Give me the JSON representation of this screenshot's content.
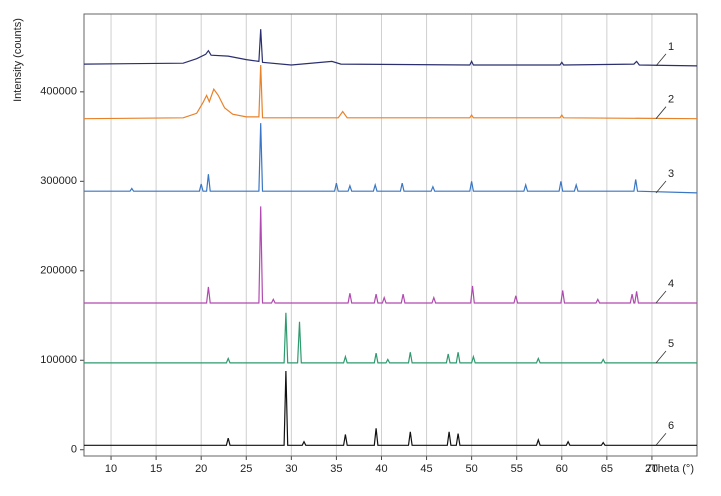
{
  "chart_data": {
    "type": "line",
    "xlabel": "2Theta (°)",
    "ylabel": "Intensity (counts)",
    "xlim": [
      7,
      75
    ],
    "ylim": [
      -7000,
      487000
    ],
    "xticks": [
      10,
      15,
      20,
      25,
      30,
      35,
      40,
      45,
      50,
      55,
      60,
      65,
      70
    ],
    "yticks": [
      0,
      100000,
      200000,
      300000,
      400000
    ],
    "grid": "x",
    "series": [
      {
        "name": "1",
        "color": "#2b2f6e",
        "x": [
          7,
          18,
          19.5,
          20.5,
          20.8,
          21.1,
          23,
          25,
          26.4,
          26.6,
          26.8,
          30,
          34.5,
          35.5,
          49.8,
          50,
          50.2,
          59.8,
          60,
          60.2,
          68,
          68.3,
          68.6,
          75
        ],
        "values": [
          431000,
          432000,
          437000,
          442000,
          446000,
          441000,
          440000,
          436000,
          434000,
          470000,
          433000,
          430000,
          434000,
          431000,
          430000,
          434000,
          430000,
          430000,
          433000,
          430000,
          431000,
          434000,
          430000,
          429000
        ]
      },
      {
        "name": "2",
        "color": "#e8822a",
        "x": [
          7,
          18,
          19.5,
          20.2,
          20.6,
          20.9,
          21.4,
          21.9,
          22.6,
          23.5,
          25,
          26.4,
          26.6,
          26.8,
          35.2,
          35.7,
          36.2,
          49.8,
          50,
          50.2,
          59.8,
          60,
          60.2,
          75
        ],
        "values": [
          370000,
          371000,
          376000,
          388000,
          396000,
          389000,
          403000,
          396000,
          382000,
          375000,
          372000,
          372000,
          430000,
          371000,
          371000,
          378000,
          371000,
          371000,
          374000,
          371000,
          371000,
          374000,
          371000,
          370000
        ]
      },
      {
        "name": "3",
        "color": "#3a76c4",
        "x": [
          7,
          12.1,
          12.3,
          12.5,
          19.8,
          20,
          20.2,
          20.6,
          20.8,
          21,
          26.4,
          26.6,
          26.8,
          34.8,
          35,
          35.2,
          36.3,
          36.5,
          36.7,
          39.1,
          39.3,
          39.5,
          42.1,
          42.3,
          42.5,
          45.5,
          45.7,
          45.9,
          49.8,
          50,
          50.2,
          55.8,
          56,
          56.2,
          59.7,
          59.9,
          60.1,
          61.4,
          61.6,
          61.8,
          68,
          68.2,
          68.4,
          75
        ],
        "values": [
          289000,
          289000,
          292000,
          289000,
          289000,
          297000,
          289000,
          289000,
          308000,
          289000,
          289000,
          365000,
          289000,
          289000,
          298000,
          289000,
          289000,
          295000,
          289000,
          289000,
          296000,
          289000,
          289000,
          298000,
          289000,
          289000,
          294000,
          289000,
          289000,
          300000,
          289000,
          289000,
          296000,
          289000,
          289000,
          300000,
          289000,
          289000,
          296000,
          289000,
          289000,
          302000,
          289000,
          287000
        ]
      },
      {
        "name": "4",
        "color": "#b14ab0",
        "x": [
          7,
          20.6,
          20.8,
          21,
          26.4,
          26.6,
          26.8,
          27.8,
          28,
          28.2,
          36.3,
          36.5,
          36.7,
          39.2,
          39.4,
          39.6,
          40.1,
          40.3,
          40.5,
          42.2,
          42.4,
          42.6,
          45.6,
          45.8,
          46,
          49.9,
          50.1,
          50.3,
          54.7,
          54.9,
          55.1,
          59.9,
          60.1,
          60.3,
          63.8,
          64,
          64.2,
          67.6,
          67.8,
          68,
          68.1,
          68.3,
          68.5,
          75
        ],
        "values": [
          164000,
          164000,
          182000,
          164000,
          164000,
          272000,
          164000,
          164000,
          168000,
          164000,
          164000,
          175000,
          164000,
          164000,
          174000,
          164000,
          164000,
          170000,
          164000,
          164000,
          174000,
          164000,
          164000,
          170000,
          164000,
          164000,
          183000,
          164000,
          164000,
          172000,
          164000,
          164000,
          178000,
          164000,
          164000,
          168000,
          164000,
          164000,
          174000,
          164000,
          164000,
          177000,
          164000,
          164000
        ]
      },
      {
        "name": "5",
        "color": "#2e9a6e",
        "x": [
          7,
          22.8,
          23,
          23.2,
          29.2,
          29.4,
          29.6,
          30.7,
          30.9,
          31.1,
          35.8,
          36,
          36.2,
          39.2,
          39.4,
          39.6,
          40.5,
          40.7,
          40.9,
          43,
          43.2,
          43.4,
          47.2,
          47.4,
          47.6,
          48.3,
          48.5,
          48.7,
          50,
          50.2,
          50.4,
          57.2,
          57.4,
          57.6,
          64.4,
          64.6,
          64.8,
          75
        ],
        "values": [
          97000,
          97000,
          102000,
          97000,
          97000,
          153000,
          97000,
          97000,
          143000,
          97000,
          97000,
          104000,
          97000,
          97000,
          108000,
          97000,
          97000,
          101000,
          97000,
          97000,
          109000,
          97000,
          97000,
          107000,
          97000,
          97000,
          109000,
          97000,
          97000,
          104000,
          97000,
          97000,
          102000,
          97000,
          97000,
          101000,
          97000,
          97000
        ]
      },
      {
        "name": "6",
        "color": "#111111",
        "x": [
          7,
          22.8,
          23,
          23.2,
          29.2,
          29.4,
          29.6,
          31.2,
          31.4,
          31.6,
          35.8,
          36,
          36.2,
          39.2,
          39.4,
          39.6,
          43,
          43.2,
          43.4,
          47.3,
          47.5,
          47.7,
          48.3,
          48.5,
          48.7,
          57.2,
          57.4,
          57.6,
          60.5,
          60.7,
          60.9,
          64.4,
          64.6,
          64.8,
          75
        ],
        "values": [
          5000,
          5000,
          13000,
          5000,
          5000,
          88000,
          5000,
          5000,
          9000,
          5000,
          5000,
          17000,
          5000,
          5000,
          24000,
          5000,
          5000,
          20000,
          5000,
          5000,
          20000,
          5000,
          5000,
          18000,
          5000,
          5000,
          11000,
          5000,
          5000,
          9000,
          5000,
          5000,
          8000,
          5000,
          5000
        ]
      }
    ]
  }
}
